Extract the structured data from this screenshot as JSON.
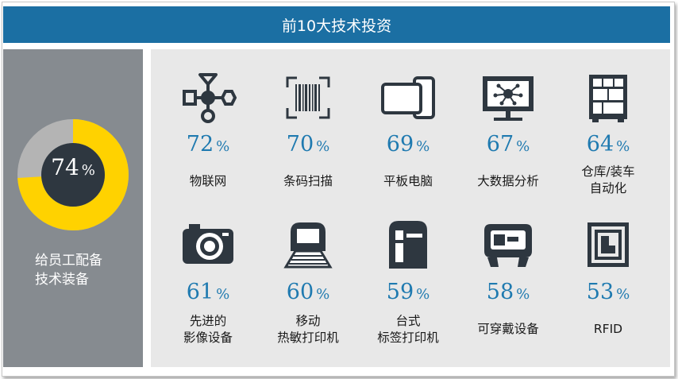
{
  "title": "前10大技术投资",
  "summary": {
    "value": 74,
    "unit": "%",
    "label": "给员工配备\n技术装备"
  },
  "colors": {
    "title_bar": "#1b6fa3",
    "accent": "#1f7ab0",
    "donut_fill": "#ffd200",
    "donut_rest": "#b4b4b4",
    "icon": "#2e3740"
  },
  "chart_data": {
    "type": "bar",
    "categories": [
      "物联网",
      "条码扫描",
      "平板电脑",
      "大数据分析",
      "仓库/装车\n自动化",
      "先进的\n影像设备",
      "移动\n热敏打印机",
      "台式\n标签打印机",
      "可穿戴设备",
      "RFID"
    ],
    "values": [
      72,
      70,
      69,
      67,
      64,
      61,
      60,
      59,
      58,
      53
    ],
    "unit": "%",
    "icons": [
      "iot-icon",
      "barcode-icon",
      "tablet-icon",
      "monitor-network-icon",
      "warehouse-icon",
      "camera-icon",
      "mobile-printer-icon",
      "desktop-printer-icon",
      "wearable-icon",
      "rfid-icon"
    ]
  },
  "items": [
    {
      "value": "72",
      "unit": "%",
      "label": "物联网"
    },
    {
      "value": "70",
      "unit": "%",
      "label": "条码扫描"
    },
    {
      "value": "69",
      "unit": "%",
      "label": "平板电脑"
    },
    {
      "value": "67",
      "unit": "%",
      "label": "大数据分析"
    },
    {
      "value": "64",
      "unit": "%",
      "label": "仓库/装车\n自动化"
    },
    {
      "value": "61",
      "unit": "%",
      "label": "先进的\n影像设备"
    },
    {
      "value": "60",
      "unit": "%",
      "label": "移动\n热敏打印机"
    },
    {
      "value": "59",
      "unit": "%",
      "label": "台式\n标签打印机"
    },
    {
      "value": "58",
      "unit": "%",
      "label": "可穿戴设备"
    },
    {
      "value": "53",
      "unit": "%",
      "label": "RFID"
    }
  ]
}
